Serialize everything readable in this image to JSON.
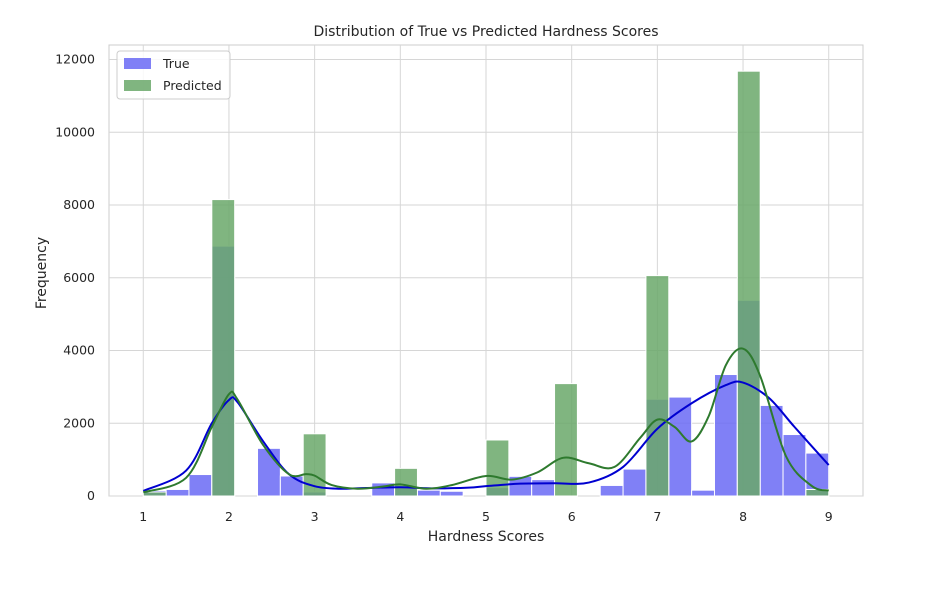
{
  "chart_data": {
    "type": "bar",
    "title": "Distribution of True vs Predicted Hardness Scores",
    "xlabel": "Hardness Scores",
    "ylabel": "Frequency",
    "xlim": [
      0.6,
      9.4
    ],
    "ylim": [
      0,
      12400
    ],
    "xticks": [
      1,
      2,
      3,
      4,
      5,
      6,
      7,
      8,
      9
    ],
    "yticks": [
      0,
      2000,
      4000,
      6000,
      8000,
      10000,
      12000
    ],
    "grid": true,
    "legend_position": "top-left",
    "bin_edges": [
      1.0,
      1.2667,
      1.5333,
      1.8,
      2.0667,
      2.3333,
      2.6,
      2.8667,
      3.1333,
      3.4,
      3.6667,
      3.9333,
      4.2,
      4.4667,
      4.7333,
      5.0,
      5.2667,
      5.5333,
      5.8,
      6.0667,
      6.3333,
      6.6,
      6.8667,
      7.1333,
      7.4,
      7.6667,
      7.9333,
      8.2,
      8.4667,
      8.7333,
      9.0
    ],
    "series": [
      {
        "name": "True",
        "color": "#6a6af5",
        "kde_color": "#0000d0",
        "values": [
          150,
          180,
          590,
          6870,
          0,
          1310,
          550,
          110,
          0,
          0,
          360,
          270,
          160,
          130,
          0,
          230,
          540,
          450,
          0,
          0,
          290,
          740,
          2660,
          2720,
          160,
          3340,
          5380,
          2490,
          1690,
          1180
        ],
        "kde_x": [
          1.0,
          1.5,
          1.8,
          2.0,
          2.1,
          2.4,
          2.7,
          3.0,
          3.3,
          3.6,
          4.0,
          4.4,
          4.8,
          5.0,
          5.4,
          5.8,
          6.2,
          6.6,
          7.0,
          7.4,
          7.8,
          8.0,
          8.3,
          8.6,
          9.0
        ],
        "kde_y": [
          140,
          700,
          2000,
          2640,
          2580,
          1500,
          600,
          270,
          200,
          220,
          240,
          210,
          230,
          270,
          340,
          350,
          370,
          800,
          1850,
          2550,
          3050,
          3120,
          2700,
          1900,
          850
        ]
      },
      {
        "name": "Predicted",
        "color": "#6aa86a",
        "kde_color": "#2e7a2e",
        "values": [
          110,
          0,
          0,
          8150,
          0,
          0,
          0,
          1710,
          0,
          0,
          0,
          760,
          0,
          0,
          0,
          1540,
          0,
          0,
          3090,
          0,
          0,
          0,
          6060,
          0,
          0,
          0,
          11680,
          0,
          0,
          180
        ],
        "kde_x": [
          1.0,
          1.5,
          1.8,
          2.0,
          2.1,
          2.4,
          2.7,
          2.9,
          3.0,
          3.2,
          3.5,
          3.8,
          4.0,
          4.3,
          4.6,
          5.0,
          5.3,
          5.6,
          5.9,
          6.2,
          6.5,
          6.8,
          7.0,
          7.2,
          7.4,
          7.6,
          7.8,
          8.0,
          8.2,
          8.5,
          8.8,
          9.0
        ],
        "kde_y": [
          100,
          500,
          1900,
          2800,
          2650,
          1400,
          600,
          600,
          560,
          300,
          200,
          260,
          320,
          200,
          300,
          550,
          450,
          650,
          1050,
          900,
          800,
          1600,
          2100,
          1900,
          1500,
          2200,
          3600,
          4050,
          3300,
          1100,
          280,
          150
        ]
      }
    ]
  }
}
